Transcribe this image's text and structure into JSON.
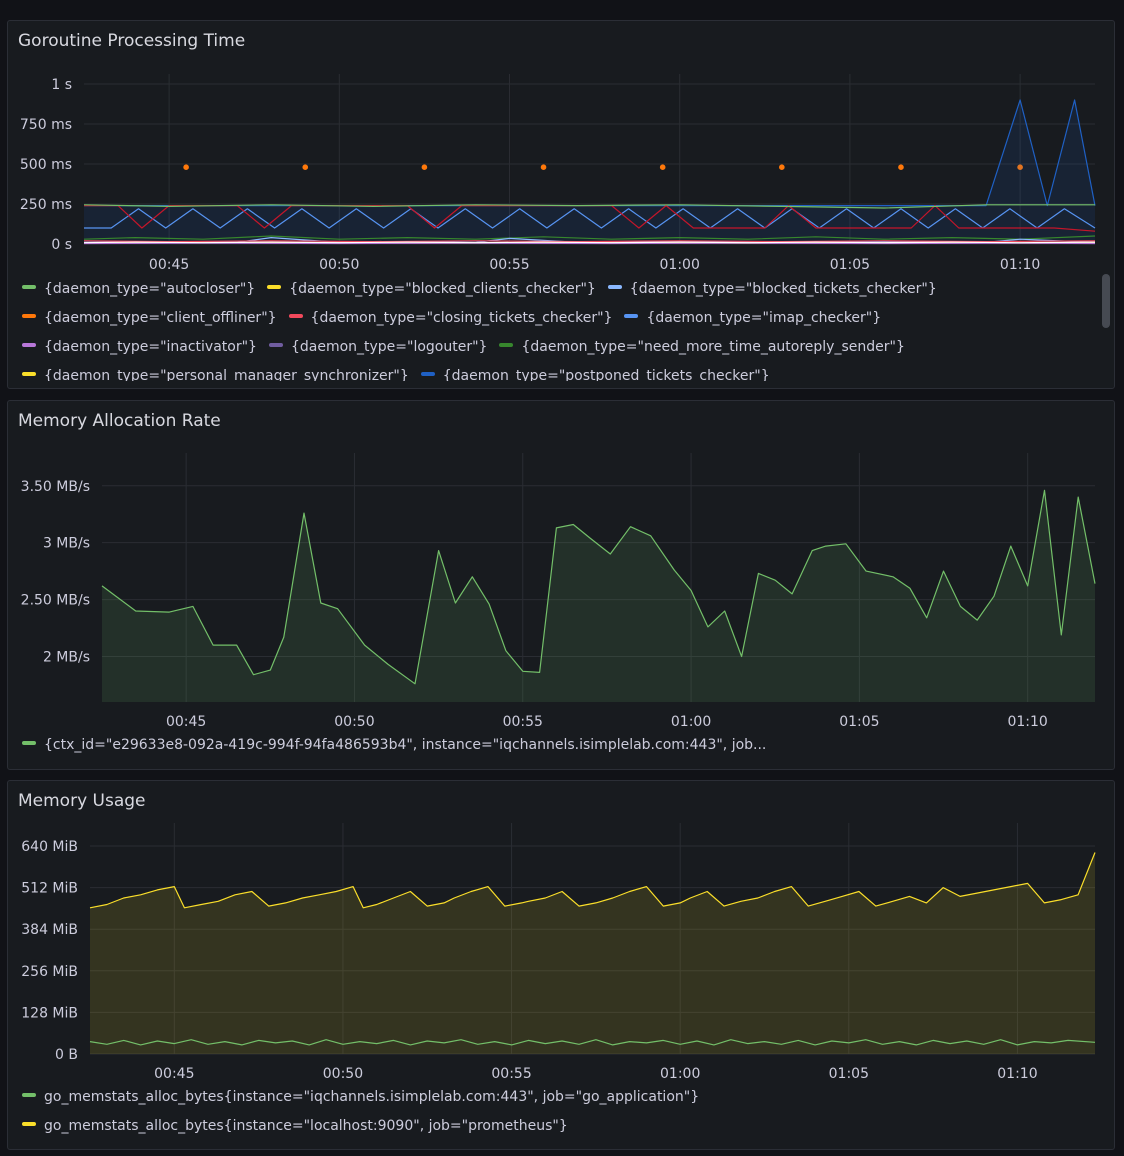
{
  "panels": [
    {
      "title": "Goroutine Processing Time",
      "legend": [
        {
          "label": "{daemon_type=\"autocloser\"}",
          "color": "#73bf69"
        },
        {
          "label": "{daemon_type=\"blocked_clients_checker\"}",
          "color": "#fade2a"
        },
        {
          "label": "{daemon_type=\"blocked_tickets_checker\"}",
          "color": "#8ab8ff"
        },
        {
          "label": "{daemon_type=\"client_offliner\"}",
          "color": "#ff780a"
        },
        {
          "label": "{daemon_type=\"closing_tickets_checker\"}",
          "color": "#f2495c"
        },
        {
          "label": "{daemon_type=\"imap_checker\"}",
          "color": "#5794f2"
        },
        {
          "label": "{daemon_type=\"inactivator\"}",
          "color": "#b877d9"
        },
        {
          "label": "{daemon_type=\"logouter\"}",
          "color": "#705da0"
        },
        {
          "label": "{daemon_type=\"need_more_time_autoreply_sender\"}",
          "color": "#37872d"
        },
        {
          "label": "{daemon_type=\"personal_manager_synchronizer\"}",
          "color": "#fade2a"
        },
        {
          "label": "{daemon_type=\"postponed_tickets_checker\"}",
          "color": "#1f60c4"
        }
      ]
    },
    {
      "title": "Memory Allocation Rate",
      "legend": [
        {
          "label": "{ctx_id=\"e29633e8-092a-419c-994f-94fa486593b4\", instance=\"iqchannels.isimplelab.com:443\", job...",
          "color": "#73bf69"
        }
      ]
    },
    {
      "title": "Memory Usage",
      "legend": [
        {
          "label": "go_memstats_alloc_bytes{instance=\"iqchannels.isimplelab.com:443\", job=\"go_application\"}",
          "color": "#73bf69"
        },
        {
          "label": "go_memstats_alloc_bytes{instance=\"localhost:9090\", job=\"prometheus\"}",
          "color": "#fade2a"
        }
      ]
    }
  ],
  "chart_data": [
    {
      "type": "line",
      "title": "Goroutine Processing Time",
      "x_ticks": [
        "00:45",
        "00:50",
        "00:55",
        "01:00",
        "01:05",
        "01:10"
      ],
      "y_ticks": [
        "0 s",
        "250 ms",
        "500 ms",
        "750 ms",
        "1 s"
      ],
      "x_range": [
        42.5,
        72.2
      ],
      "ylim": [
        0,
        1000
      ],
      "y_unit": "ms",
      "grid": true,
      "legend_position": "bottom",
      "series": [
        {
          "name": "{daemon_type=\"client_offliner\"}",
          "color": "#ff780a",
          "style": "points",
          "x": [
            45.5,
            49,
            52.5,
            56,
            59.5,
            63,
            66.5,
            70
          ],
          "y": [
            480,
            480,
            480,
            480,
            480,
            480,
            480,
            480
          ]
        },
        {
          "name": "{daemon_type=\"postponed_tickets_checker\"}",
          "color": "#1f60c4",
          "fill": true,
          "x": [
            42.5,
            69,
            70,
            70.8,
            71.6,
            72.2
          ],
          "y": [
            240,
            240,
            900,
            240,
            900,
            240
          ]
        },
        {
          "name": "{daemon_type=\"imap_checker\"}",
          "color": "#5794f2",
          "x": [
            42.5,
            43.3,
            44.1,
            44.9,
            45.7,
            46.5,
            47.3,
            48.1,
            48.9,
            49.7,
            50.5,
            51.3,
            52.1,
            52.9,
            53.7,
            54.5,
            55.3,
            56.1,
            56.9,
            57.7,
            58.5,
            59.3,
            60.1,
            60.9,
            61.7,
            62.5,
            63.3,
            64.1,
            64.9,
            65.7,
            66.5,
            67.3,
            68.1,
            68.9,
            69.7,
            70.5,
            71.3,
            72.2
          ],
          "y": [
            100,
            100,
            220,
            100,
            220,
            100,
            220,
            100,
            220,
            100,
            220,
            100,
            220,
            100,
            220,
            100,
            220,
            100,
            220,
            100,
            220,
            100,
            220,
            100,
            220,
            100,
            220,
            100,
            220,
            100,
            220,
            100,
            220,
            100,
            220,
            100,
            220,
            100
          ]
        },
        {
          "name": "{daemon_type=\"closing_tickets_checker\"}",
          "color": "#c4162a",
          "x": [
            42.5,
            43.5,
            44.2,
            45,
            47,
            47.8,
            48.6,
            52,
            52.8,
            53.6,
            58,
            58.8,
            59.6,
            60.4,
            62.5,
            63.2,
            64,
            66.8,
            67.5,
            68.2,
            71,
            72.2
          ],
          "y": [
            240,
            240,
            100,
            240,
            240,
            100,
            240,
            240,
            100,
            240,
            240,
            100,
            240,
            100,
            100,
            240,
            100,
            100,
            240,
            100,
            100,
            80
          ]
        },
        {
          "name": "{daemon_type=\"autocloser\"}",
          "color": "#73bf69",
          "x": [
            42.5,
            45,
            48,
            51,
            54,
            57,
            60,
            63,
            66,
            69,
            72.2
          ],
          "y": [
            245,
            235,
            245,
            235,
            245,
            240,
            245,
            235,
            225,
            245,
            245
          ]
        },
        {
          "name": "{daemon_type=\"need_more_time_autoreply_sender\"}",
          "color": "#37872d",
          "x": [
            42.5,
            44,
            46,
            48,
            50,
            52,
            54,
            56,
            58,
            60,
            62,
            64,
            66,
            68,
            70,
            72.2
          ],
          "y": [
            30,
            40,
            30,
            50,
            30,
            40,
            30,
            45,
            30,
            40,
            30,
            45,
            30,
            40,
            30,
            50
          ]
        },
        {
          "name": "{daemon_type=\"blocked_tickets_checker\"}",
          "color": "#8ab8ff",
          "x": [
            42.5,
            45,
            47,
            48,
            50,
            52,
            54,
            55,
            57,
            60,
            63,
            66,
            69,
            70,
            72.2
          ],
          "y": [
            10,
            15,
            10,
            40,
            10,
            15,
            10,
            35,
            10,
            15,
            10,
            15,
            10,
            30,
            10
          ]
        },
        {
          "name": "{daemon_type=\"blocked_clients_checker\"}",
          "color": "#fade2a",
          "x": [
            42.5,
            47,
            52,
            57,
            62,
            67,
            72.2
          ],
          "y": [
            5,
            8,
            5,
            8,
            5,
            8,
            5
          ]
        },
        {
          "name": "{daemon_type=\"closing_tickets_checker\"}",
          "color": "#f2495c",
          "x": [
            42.5,
            45,
            48,
            51,
            54,
            57,
            60,
            63,
            66,
            69,
            72.2
          ],
          "y": [
            20,
            15,
            20,
            15,
            20,
            15,
            20,
            15,
            20,
            15,
            20
          ]
        },
        {
          "name": "{daemon_type=\"inactivator\"}",
          "color": "#b877d9",
          "x": [
            42.5,
            46,
            50,
            54,
            58,
            62,
            66,
            70,
            72.2
          ],
          "y": [
            3,
            5,
            3,
            5,
            3,
            5,
            3,
            5,
            3
          ]
        },
        {
          "name": "{daemon_type=\"logouter\"}",
          "color": "#ffffff",
          "x": [
            42.5,
            44,
            46,
            48,
            50,
            52,
            54,
            56,
            58,
            60,
            62,
            64,
            66,
            68,
            70,
            72.2
          ],
          "y": [
            8,
            12,
            8,
            12,
            8,
            12,
            8,
            12,
            8,
            12,
            8,
            12,
            8,
            12,
            8,
            12
          ]
        }
      ]
    },
    {
      "type": "area",
      "title": "Memory Allocation Rate",
      "x_ticks": [
        "00:45",
        "00:50",
        "00:55",
        "01:00",
        "01:05",
        "01:10"
      ],
      "y_ticks": [
        "2 MB/s",
        "2.50 MB/s",
        "3 MB/s",
        "3.50 MB/s"
      ],
      "x_range": [
        42.5,
        72
      ],
      "ylim": [
        1.6,
        3.7
      ],
      "y_unit": "MB/s",
      "grid": true,
      "legend_position": "bottom",
      "series": [
        {
          "name": "{ctx_id=\"e29633e8-092a-419c-994f-94fa486593b4\", instance=\"iqchannels.isimplelab.com:443\", job...",
          "color": "#73bf69",
          "fill": true,
          "x": [
            42.5,
            43.5,
            44.5,
            45.2,
            45.8,
            46.5,
            47,
            47.5,
            47.9,
            48.5,
            49,
            49.5,
            50.3,
            51,
            51.8,
            52.5,
            53,
            53.5,
            54,
            54.5,
            55,
            55.5,
            56,
            56.5,
            57,
            57.6,
            58.2,
            58.8,
            59.5,
            60,
            60.5,
            61,
            61.5,
            62,
            62.5,
            63,
            63.6,
            64,
            64.6,
            65.2,
            66,
            66.5,
            67,
            67.5,
            68,
            68.5,
            69,
            69.5,
            70,
            70.5,
            71,
            71.5,
            72
          ],
          "y": [
            2.62,
            2.4,
            2.39,
            2.44,
            2.1,
            2.1,
            1.84,
            1.88,
            2.17,
            3.26,
            2.47,
            2.42,
            2.1,
            1.93,
            1.76,
            2.93,
            2.47,
            2.7,
            2.46,
            2.05,
            1.87,
            1.86,
            3.13,
            3.16,
            3.04,
            2.9,
            3.14,
            3.06,
            2.76,
            2.58,
            2.26,
            2.4,
            2.0,
            2.73,
            2.67,
            2.55,
            2.93,
            2.97,
            2.99,
            2.75,
            2.7,
            2.6,
            2.34,
            2.75,
            2.44,
            2.32,
            2.53,
            2.97,
            2.62,
            3.46,
            2.19,
            3.4,
            2.64
          ]
        }
      ]
    },
    {
      "type": "area",
      "title": "Memory Usage",
      "x_ticks": [
        "00:45",
        "00:50",
        "00:55",
        "01:00",
        "01:05",
        "01:10"
      ],
      "y_ticks": [
        "0 B",
        "128 MiB",
        "256 MiB",
        "384 MiB",
        "512 MiB",
        "640 MiB"
      ],
      "x_range": [
        42.5,
        72.3
      ],
      "ylim": [
        0,
        680
      ],
      "y_unit": "MiB",
      "grid": true,
      "legend_position": "bottom",
      "series": [
        {
          "name": "go_memstats_alloc_bytes{instance=\"localhost:9090\", job=\"prometheus\"}",
          "color": "#fade2a",
          "fill": true,
          "x": [
            42.5,
            43.0,
            43.5,
            44.0,
            44.5,
            45.0,
            45.3,
            45.8,
            46.3,
            46.8,
            47.3,
            47.8,
            48.3,
            48.8,
            49.3,
            49.8,
            50.3,
            50.6,
            51.0,
            51.5,
            52.0,
            52.5,
            53.0,
            53.3,
            53.8,
            54.3,
            54.8,
            55.3,
            55.5,
            56.0,
            56.5,
            57.0,
            57.5,
            58.0,
            58.5,
            59.0,
            59.5,
            60.0,
            60.3,
            60.8,
            61.3,
            61.8,
            62.3,
            62.8,
            63.3,
            63.8,
            64.3,
            64.8,
            65.3,
            65.8,
            66.3,
            66.8,
            67.3,
            67.8,
            68.3,
            68.8,
            69.3,
            69.8,
            70.3,
            70.8,
            71.3,
            71.8,
            72.3
          ],
          "y": [
            450,
            460,
            480,
            490,
            505,
            515,
            450,
            460,
            470,
            490,
            500,
            455,
            465,
            480,
            490,
            500,
            515,
            450,
            460,
            480,
            500,
            455,
            465,
            480,
            500,
            515,
            455,
            465,
            470,
            480,
            500,
            455,
            465,
            480,
            500,
            515,
            455,
            465,
            480,
            500,
            455,
            470,
            480,
            500,
            515,
            455,
            470,
            485,
            500,
            455,
            470,
            485,
            465,
            512,
            485,
            495,
            505,
            515,
            525,
            465,
            475,
            490,
            620
          ]
        },
        {
          "name": "go_memstats_alloc_bytes{instance=\"iqchannels.isimplelab.com:443\", job=\"go_application\"}",
          "color": "#73bf69",
          "x": [
            42.5,
            43.0,
            43.5,
            44.0,
            44.5,
            45.0,
            45.5,
            46.0,
            46.5,
            47.0,
            47.5,
            48.0,
            48.5,
            49.0,
            49.5,
            50.0,
            50.5,
            51.0,
            51.5,
            52.0,
            52.5,
            53.0,
            53.5,
            54.0,
            54.5,
            55.0,
            55.5,
            56.0,
            56.5,
            57.0,
            57.5,
            58.0,
            58.5,
            59.0,
            59.5,
            60.0,
            60.5,
            61.0,
            61.5,
            62.0,
            62.5,
            63.0,
            63.5,
            64.0,
            64.5,
            65.0,
            65.5,
            66.0,
            66.5,
            67.0,
            67.5,
            68.0,
            68.5,
            69.0,
            69.5,
            70.0,
            70.5,
            71.0,
            71.5,
            72.3
          ],
          "y": [
            38,
            30,
            42,
            28,
            40,
            32,
            44,
            30,
            38,
            28,
            42,
            34,
            40,
            28,
            44,
            30,
            38,
            32,
            42,
            28,
            40,
            34,
            44,
            30,
            38,
            28,
            42,
            32,
            40,
            30,
            44,
            28,
            38,
            34,
            42,
            30,
            40,
            28,
            44,
            32,
            38,
            30,
            42,
            28,
            40,
            34,
            44,
            30,
            38,
            28,
            42,
            32,
            40,
            30,
            44,
            28,
            38,
            34,
            42,
            36
          ]
        }
      ]
    }
  ]
}
